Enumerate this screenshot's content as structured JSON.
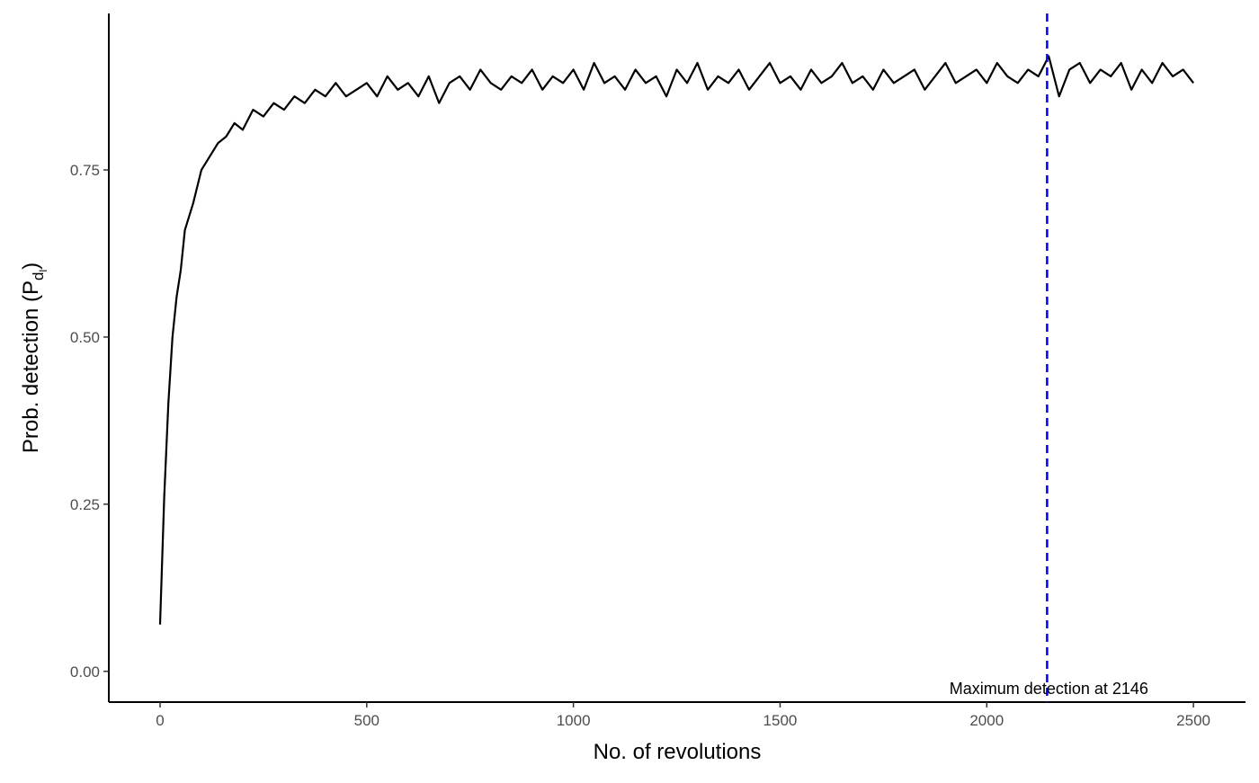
{
  "chart_data": {
    "type": "line",
    "x_label": "No. of revolutions",
    "y_label_parts": [
      "Prob. detection  (P",
      "d",
      "l",
      ")"
    ],
    "x": [
      0,
      10,
      20,
      30,
      40,
      50,
      60,
      80,
      100,
      120,
      140,
      160,
      180,
      200,
      225,
      250,
      275,
      300,
      325,
      350,
      375,
      400,
      425,
      450,
      475,
      500,
      525,
      550,
      575,
      600,
      625,
      650,
      675,
      700,
      725,
      750,
      775,
      800,
      825,
      850,
      875,
      900,
      925,
      950,
      975,
      1000,
      1025,
      1050,
      1075,
      1100,
      1125,
      1150,
      1175,
      1200,
      1225,
      1250,
      1275,
      1300,
      1325,
      1350,
      1375,
      1400,
      1425,
      1450,
      1475,
      1500,
      1525,
      1550,
      1575,
      1600,
      1625,
      1650,
      1675,
      1700,
      1725,
      1750,
      1775,
      1800,
      1825,
      1850,
      1875,
      1900,
      1925,
      1950,
      1975,
      2000,
      2025,
      2050,
      2075,
      2100,
      2125,
      2150,
      2175,
      2200,
      2225,
      2250,
      2275,
      2300,
      2325,
      2350,
      2375,
      2400,
      2425,
      2450,
      2475,
      2500
    ],
    "values": [
      0.07,
      0.26,
      0.4,
      0.5,
      0.56,
      0.6,
      0.66,
      0.7,
      0.75,
      0.77,
      0.79,
      0.8,
      0.82,
      0.81,
      0.84,
      0.83,
      0.85,
      0.84,
      0.86,
      0.85,
      0.87,
      0.86,
      0.88,
      0.86,
      0.87,
      0.88,
      0.86,
      0.89,
      0.87,
      0.88,
      0.86,
      0.89,
      0.85,
      0.88,
      0.89,
      0.87,
      0.9,
      0.88,
      0.87,
      0.89,
      0.88,
      0.9,
      0.87,
      0.89,
      0.88,
      0.9,
      0.87,
      0.91,
      0.88,
      0.89,
      0.87,
      0.9,
      0.88,
      0.89,
      0.86,
      0.9,
      0.88,
      0.91,
      0.87,
      0.89,
      0.88,
      0.9,
      0.87,
      0.89,
      0.91,
      0.88,
      0.89,
      0.87,
      0.9,
      0.88,
      0.89,
      0.91,
      0.88,
      0.89,
      0.87,
      0.9,
      0.88,
      0.89,
      0.9,
      0.87,
      0.89,
      0.91,
      0.88,
      0.89,
      0.9,
      0.88,
      0.91,
      0.89,
      0.88,
      0.9,
      0.89,
      0.92,
      0.86,
      0.9,
      0.91,
      0.88,
      0.9,
      0.89,
      0.91,
      0.87,
      0.9,
      0.88,
      0.91,
      0.89,
      0.9,
      0.88
    ],
    "color": "#000000",
    "xlim": [
      -124,
      2626
    ],
    "ylim": [
      -0.046,
      0.984
    ],
    "xticks": [
      0,
      500,
      1000,
      1500,
      2000,
      2500
    ],
    "yticks": [
      {
        "value": 0,
        "label": "0.00"
      },
      {
        "value": 0.25,
        "label": "0.25"
      },
      {
        "value": 0.5,
        "label": "0.50"
      },
      {
        "value": 0.75,
        "label": "0.75"
      }
    ],
    "grid": false,
    "vline": {
      "x": 2146,
      "color": "#0000ff",
      "dashed": true
    },
    "annotation": "Maximum detection at  2146"
  }
}
